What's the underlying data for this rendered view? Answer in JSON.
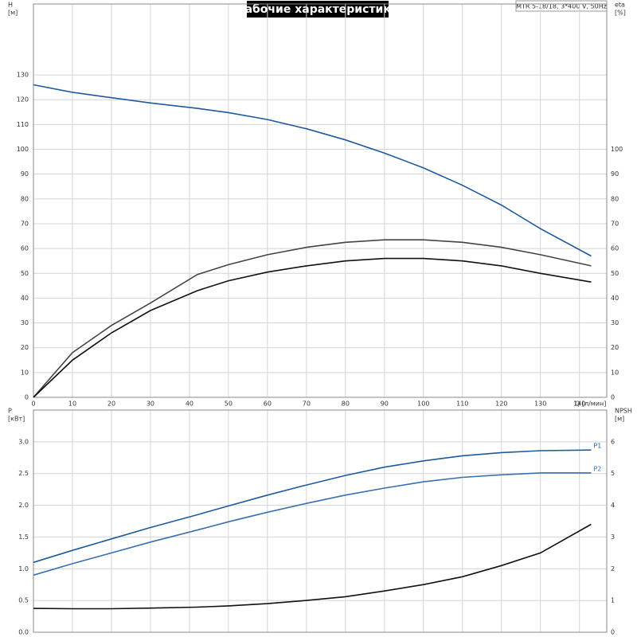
{
  "chart_data": [
    {
      "type": "line",
      "title": "Рабочие характеристики",
      "subtitle": "MTR 5-18/18, 3*400 V, 50Hz",
      "xlabel": "Q [л/мин]",
      "ylabel": "H",
      "yunit": "[м]",
      "y2label": "eta",
      "y2unit": "[%]",
      "x": [
        0,
        10,
        20,
        30,
        42,
        50,
        60,
        70,
        80,
        90,
        100,
        110,
        120,
        130,
        143
      ],
      "xlim": [
        0,
        147
      ],
      "xticks": [
        0,
        10,
        20,
        30,
        40,
        50,
        60,
        70,
        80,
        90,
        100,
        110,
        120,
        130,
        140
      ],
      "ylim": [
        0,
        158.6
      ],
      "yticks": [
        0,
        10,
        20,
        30,
        40,
        50,
        60,
        70,
        80,
        90,
        100,
        110,
        120,
        130
      ],
      "y2lim": [
        0,
        158.6
      ],
      "y2ticks": [
        0,
        10,
        20,
        30,
        40,
        50,
        60,
        70,
        80,
        90,
        100
      ],
      "grid": true,
      "xtick_labels": true,
      "series": [
        {
          "color": "#1f5a9c",
          "values": [
            126,
            123,
            120.8,
            118.7,
            116.5,
            114.8,
            112,
            108.3,
            103.8,
            98.5,
            92.5,
            85.5,
            77.5,
            68,
            57
          ]
        },
        {
          "color": "#444444",
          "axis": "y2",
          "values": [
            0,
            18,
            29,
            38,
            49.5,
            53.5,
            57.5,
            60.5,
            62.5,
            63.5,
            63.5,
            62.5,
            60.5,
            57.5,
            53
          ]
        },
        {
          "color": "#111111",
          "axis": "y2",
          "values": [
            0,
            15,
            26,
            35,
            43,
            47,
            50.5,
            53,
            55,
            56,
            56,
            55,
            53,
            50,
            46.5
          ]
        }
      ]
    },
    {
      "type": "line",
      "ylabel": "P",
      "yunit": "[кВт]",
      "y2label": "NPSH",
      "y2unit": "[м]",
      "x": [
        0,
        10,
        20,
        30,
        42,
        50,
        60,
        70,
        80,
        90,
        100,
        110,
        120,
        130,
        143
      ],
      "xlim": [
        0,
        147
      ],
      "xticks": [
        0,
        10,
        20,
        30,
        40,
        50,
        60,
        70,
        80,
        90,
        100,
        110,
        120,
        130,
        140
      ],
      "ylim": [
        0,
        3.5
      ],
      "yticks": [
        {
          "value": 0,
          "label": "0.0"
        },
        0.5,
        {
          "value": 1,
          "label": "1.0"
        },
        1.5,
        {
          "value": 2,
          "label": "2.0"
        },
        2.5,
        {
          "value": 3,
          "label": "3.0"
        }
      ],
      "y2lim": [
        0,
        7
      ],
      "y2ticks": [
        0,
        1,
        2,
        3,
        4,
        5,
        6
      ],
      "grid": true,
      "xtick_labels": false,
      "series": [
        {
          "name": "P1",
          "color": "#1f5a9c",
          "values": [
            1.1,
            1.29,
            1.47,
            1.65,
            1.85,
            1.99,
            2.16,
            2.32,
            2.47,
            2.6,
            2.7,
            2.78,
            2.83,
            2.86,
            2.87
          ]
        },
        {
          "name": "P2",
          "color": "#3a6fb0",
          "values": [
            0.9,
            1.08,
            1.25,
            1.42,
            1.61,
            1.74,
            1.89,
            2.03,
            2.16,
            2.27,
            2.37,
            2.44,
            2.48,
            2.51,
            2.51
          ]
        },
        {
          "color": "#111111",
          "axis": "y2",
          "values": [
            0.75,
            0.74,
            0.74,
            0.76,
            0.79,
            0.83,
            0.9,
            1.0,
            1.12,
            1.3,
            1.5,
            1.75,
            2.1,
            2.5,
            3.4
          ]
        }
      ]
    }
  ]
}
